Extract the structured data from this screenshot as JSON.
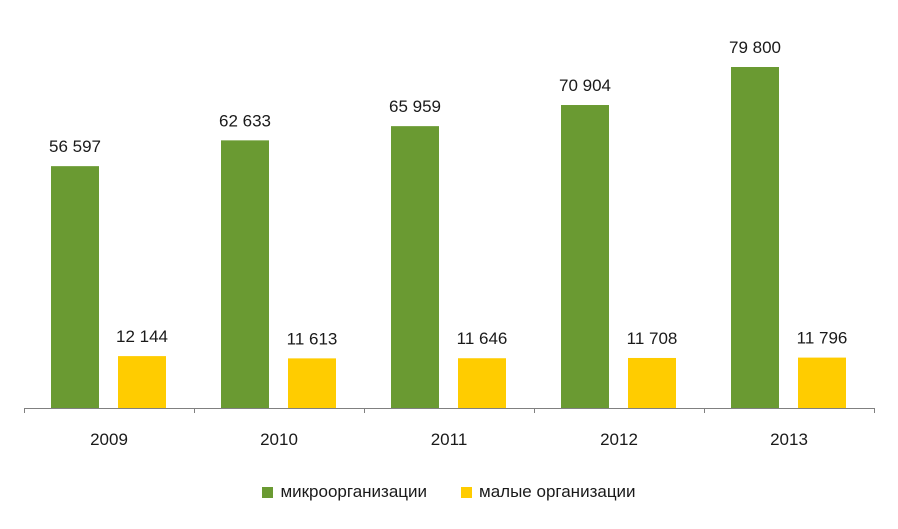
{
  "chart_data": {
    "type": "bar",
    "categories": [
      "2009",
      "2010",
      "2011",
      "2012",
      "2013"
    ],
    "series": [
      {
        "name": "микроорганизации",
        "color": "#6a9a32",
        "values": [
          56597,
          62633,
          65959,
          70904,
          79800
        ],
        "labels": [
          "56 597",
          "62 633",
          "65 959",
          "70 904",
          "79 800"
        ]
      },
      {
        "name": "малые организации",
        "color": "#ffcc00",
        "values": [
          12144,
          11613,
          11646,
          11708,
          11796
        ],
        "labels": [
          "12 144",
          "11 613",
          "11 646",
          "11 708",
          "11 796"
        ]
      }
    ],
    "ylim": [
      0,
      95000
    ],
    "grid": false,
    "legend_position": "bottom",
    "axis_color": "#808080"
  }
}
